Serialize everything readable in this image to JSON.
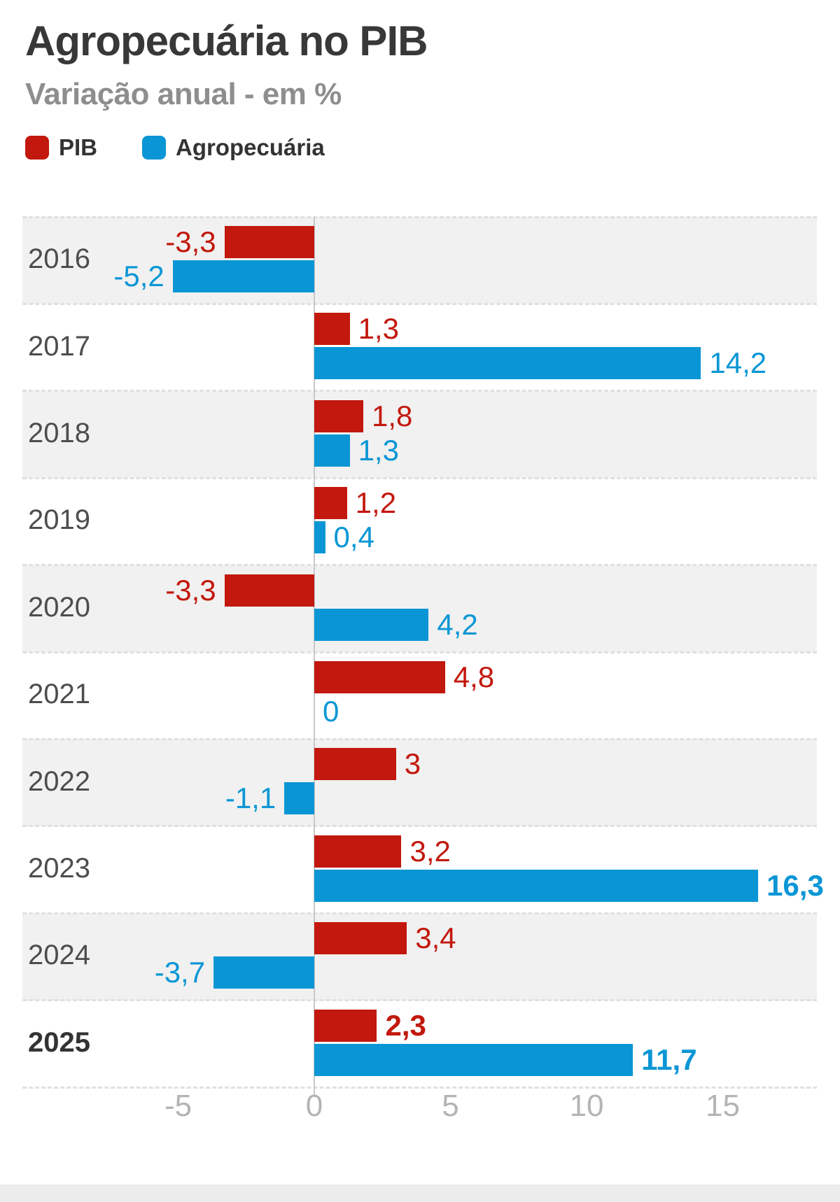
{
  "header": {
    "title": "Agropecuária no PIB",
    "subtitle": "Variação anual - em %"
  },
  "legend": [
    {
      "label": "PIB",
      "color": "#c2180d"
    },
    {
      "label": "Agropecuária",
      "color": "#0a96d5"
    }
  ],
  "colors": {
    "pib": "#c2180d",
    "agro": "#0a96d5",
    "row_shaded": "#f1f1f1",
    "separator": "#e0e0e0",
    "zero_line": "#c8c8c8",
    "tick_text": "#b4b4b4",
    "footer_band": "#ececec"
  },
  "chart_data": {
    "type": "bar",
    "orientation": "horizontal",
    "title": "Agropecuária no PIB",
    "subtitle": "Variação anual - em %",
    "unit": "%",
    "legend_position": "top",
    "x_ticks": [
      {
        "value": -5,
        "label": "-5"
      },
      {
        "value": 0,
        "label": "0"
      },
      {
        "value": 5,
        "label": "5"
      },
      {
        "value": 10,
        "label": "10"
      },
      {
        "value": 15,
        "label": "15"
      }
    ],
    "xlim": [
      -10.7,
      18.5
    ],
    "grid": false,
    "series_names": [
      "PIB",
      "Agropecuária"
    ],
    "rows": [
      {
        "year": "2016",
        "year_bold": false,
        "shaded": true,
        "pib": {
          "value": -3.3,
          "label": "-3,3",
          "bold": false
        },
        "agro": {
          "value": -5.2,
          "label": "-5,2",
          "bold": false
        }
      },
      {
        "year": "2017",
        "year_bold": false,
        "shaded": false,
        "pib": {
          "value": 1.3,
          "label": "1,3",
          "bold": false
        },
        "agro": {
          "value": 14.2,
          "label": "14,2",
          "bold": false
        }
      },
      {
        "year": "2018",
        "year_bold": false,
        "shaded": true,
        "pib": {
          "value": 1.8,
          "label": "1,8",
          "bold": false
        },
        "agro": {
          "value": 1.3,
          "label": "1,3",
          "bold": false
        }
      },
      {
        "year": "2019",
        "year_bold": false,
        "shaded": false,
        "pib": {
          "value": 1.2,
          "label": "1,2",
          "bold": false
        },
        "agro": {
          "value": 0.4,
          "label": "0,4",
          "bold": false
        }
      },
      {
        "year": "2020",
        "year_bold": false,
        "shaded": true,
        "pib": {
          "value": -3.3,
          "label": "-3,3",
          "bold": false
        },
        "agro": {
          "value": 4.2,
          "label": "4,2",
          "bold": false
        }
      },
      {
        "year": "2021",
        "year_bold": false,
        "shaded": false,
        "pib": {
          "value": 4.8,
          "label": "4,8",
          "bold": false
        },
        "agro": {
          "value": 0,
          "label": "0",
          "bold": false
        }
      },
      {
        "year": "2022",
        "year_bold": false,
        "shaded": true,
        "pib": {
          "value": 3,
          "label": "3",
          "bold": false
        },
        "agro": {
          "value": -1.1,
          "label": "-1,1",
          "bold": false
        }
      },
      {
        "year": "2023",
        "year_bold": false,
        "shaded": false,
        "pib": {
          "value": 3.2,
          "label": "3,2",
          "bold": false
        },
        "agro": {
          "value": 16.3,
          "label": "16,3",
          "bold": true
        }
      },
      {
        "year": "2024",
        "year_bold": false,
        "shaded": true,
        "pib": {
          "value": 3.4,
          "label": "3,4",
          "bold": false
        },
        "agro": {
          "value": -3.7,
          "label": "-3,7",
          "bold": false
        }
      },
      {
        "year": "2025",
        "year_bold": true,
        "shaded": false,
        "pib": {
          "value": 2.3,
          "label": "2,3",
          "bold": true
        },
        "agro": {
          "value": 11.7,
          "label": "11,7",
          "bold": true
        }
      }
    ]
  }
}
